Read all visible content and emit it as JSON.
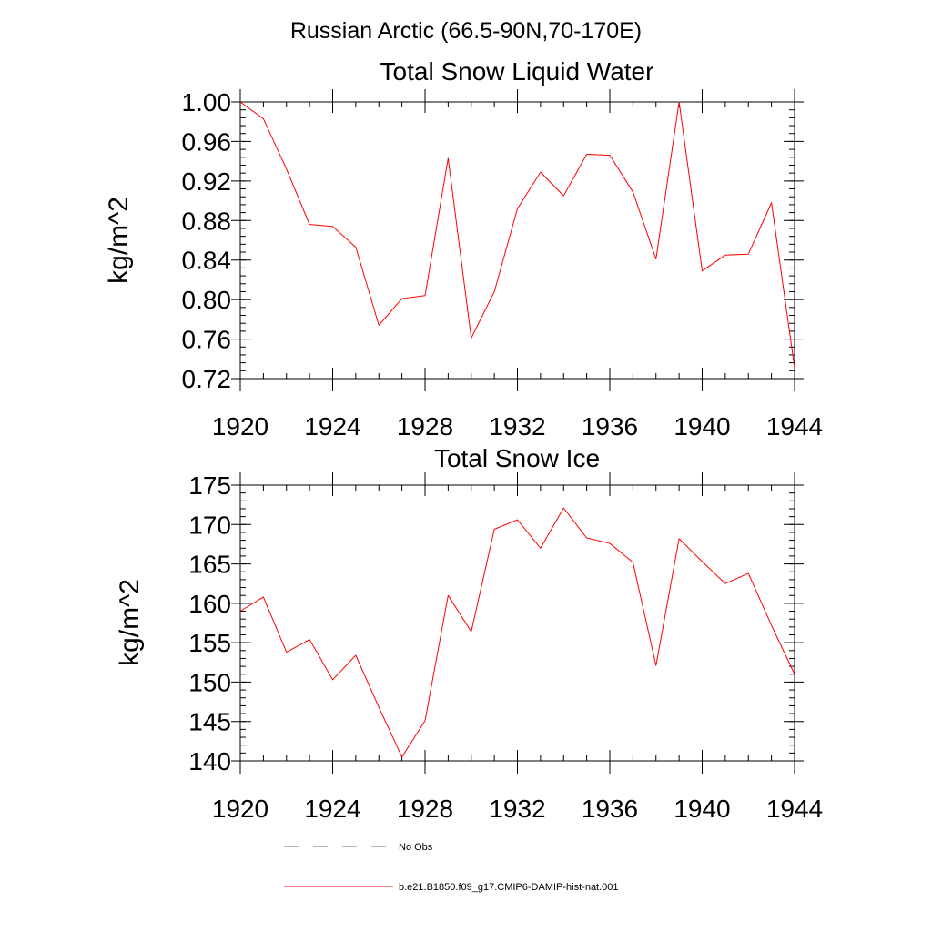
{
  "suptitle": "Russian Arctic (66.5-90N,70-170E)",
  "line_color": "#ff0000",
  "nodata_color": "#6a6a8a",
  "legend": {
    "entries": [
      {
        "label": "No Obs",
        "style": "dashed"
      },
      {
        "label": "b.e21.B1850.f09_g17.CMIP6-DAMIP-hist-nat.001",
        "style": "solid"
      }
    ]
  },
  "chart_data": [
    {
      "type": "line",
      "title": "Total Snow Liquid Water",
      "xlabel": "",
      "ylabel": "kg/m^2",
      "xlim": [
        1920,
        1944
      ],
      "ylim": [
        0.72,
        1.0
      ],
      "xticks": [
        1920,
        1924,
        1928,
        1932,
        1936,
        1940,
        1944
      ],
      "xtick_labels": [
        "1920",
        "1924",
        "1928",
        "1932",
        "1936",
        "1940",
        "1944"
      ],
      "yticks": [
        0.72,
        0.76,
        0.8,
        0.84,
        0.88,
        0.92,
        0.96,
        1.0
      ],
      "ytick_labels": [
        "0.72",
        "0.76",
        "0.80",
        "0.84",
        "0.88",
        "0.92",
        "0.96",
        "1.00"
      ],
      "grid": false,
      "x": [
        1920,
        1921,
        1922,
        1923,
        1924,
        1925,
        1926,
        1927,
        1928,
        1929,
        1930,
        1931,
        1932,
        1933,
        1934,
        1935,
        1936,
        1937,
        1938,
        1939,
        1940,
        1941,
        1942,
        1943,
        1944
      ],
      "values": [
        1.0,
        0.983,
        0.932,
        0.876,
        0.874,
        0.853,
        0.774,
        0.801,
        0.804,
        0.943,
        0.761,
        0.808,
        0.892,
        0.929,
        0.905,
        0.947,
        0.946,
        0.909,
        0.841,
        1.0,
        0.829,
        0.845,
        0.846,
        0.898,
        0.731
      ]
    },
    {
      "type": "line",
      "title": "Total Snow Ice",
      "xlabel": "",
      "ylabel": "kg/m^2",
      "xlim": [
        1920,
        1944
      ],
      "ylim": [
        140,
        175
      ],
      "xticks": [
        1920,
        1924,
        1928,
        1932,
        1936,
        1940,
        1944
      ],
      "xtick_labels": [
        "1920",
        "1924",
        "1928",
        "1932",
        "1936",
        "1940",
        "1944"
      ],
      "yticks": [
        140,
        145,
        150,
        155,
        160,
        165,
        170,
        175
      ],
      "ytick_labels": [
        "140",
        "145",
        "150",
        "155",
        "160",
        "165",
        "170",
        "175"
      ],
      "grid": false,
      "x": [
        1920,
        1921,
        1922,
        1923,
        1924,
        1925,
        1926,
        1927,
        1928,
        1929,
        1930,
        1931,
        1932,
        1933,
        1934,
        1935,
        1936,
        1937,
        1938,
        1939,
        1940,
        1941,
        1942,
        1943,
        1944
      ],
      "values": [
        159.0,
        160.8,
        153.8,
        155.4,
        150.3,
        153.4,
        146.8,
        140.5,
        145.1,
        161.0,
        156.4,
        169.4,
        170.6,
        167.0,
        172.1,
        168.3,
        167.6,
        165.2,
        152.1,
        168.2,
        165.3,
        162.5,
        163.8,
        157.2,
        151.0
      ]
    }
  ]
}
